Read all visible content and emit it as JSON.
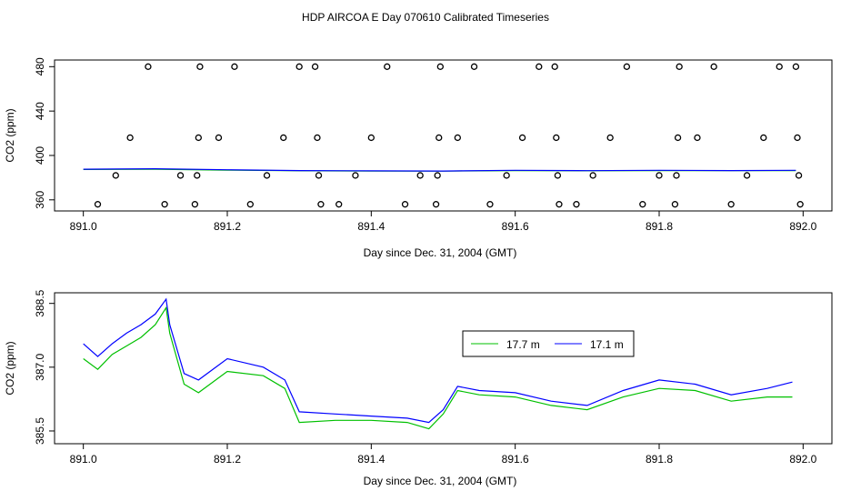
{
  "page": {
    "title": "HDP AIRCOA E  Day 070610  Calibrated Timeseries"
  },
  "chart_data": [
    {
      "type": "scatter",
      "xlabel": "Day since Dec. 31, 2004 (GMT)",
      "ylabel": "CO2 (ppm)",
      "xlim": [
        890.96,
        892.04
      ],
      "ylim": [
        350,
        486
      ],
      "xticks": [
        891.0,
        891.2,
        891.4,
        891.6,
        891.8,
        892.0
      ],
      "xtick_labels": [
        "891.0",
        "891.2",
        "891.4",
        "891.6",
        "891.8",
        "892.0"
      ],
      "yticks": [
        360,
        400,
        440,
        480
      ],
      "ytick_labels": [
        "360",
        "400",
        "440",
        "480"
      ],
      "legend": "none",
      "grid": false,
      "series": [
        {
          "color": "#00c000",
          "mode": "line",
          "x": [
            891.0,
            891.1,
            891.2,
            891.3,
            891.4,
            891.5,
            891.6,
            891.7,
            891.8,
            891.9,
            891.99
          ],
          "y": [
            387.4,
            387.6,
            386.8,
            386.2,
            386.0,
            385.9,
            386.4,
            386.2,
            386.4,
            386.3,
            386.4
          ]
        },
        {
          "color": "#0000ff",
          "mode": "line",
          "x": [
            891.0,
            891.1,
            891.2,
            891.3,
            891.4,
            891.5,
            891.6,
            891.7,
            891.8,
            891.9,
            891.99
          ],
          "y": [
            387.6,
            388.0,
            387.1,
            386.4,
            386.1,
            386.0,
            386.6,
            386.3,
            386.6,
            386.4,
            386.6
          ]
        },
        {
          "color": "#000000",
          "mode": "points",
          "points": [
            [
              891.02,
              356
            ],
            [
              891.045,
              382
            ],
            [
              891.065,
              416
            ],
            [
              891.09,
              480
            ],
            [
              891.113,
              356
            ],
            [
              891.135,
              382
            ],
            [
              891.155,
              356
            ],
            [
              891.158,
              382
            ],
            [
              891.16,
              416
            ],
            [
              891.162,
              480
            ],
            [
              891.188,
              416
            ],
            [
              891.21,
              480
            ],
            [
              891.232,
              356
            ],
            [
              891.255,
              382
            ],
            [
              891.278,
              416
            ],
            [
              891.3,
              480
            ],
            [
              891.322,
              480
            ],
            [
              891.325,
              416
            ],
            [
              891.327,
              382
            ],
            [
              891.33,
              356
            ],
            [
              891.355,
              356
            ],
            [
              891.378,
              382
            ],
            [
              891.4,
              416
            ],
            [
              891.422,
              480
            ],
            [
              891.447,
              356
            ],
            [
              891.468,
              382
            ],
            [
              891.49,
              356
            ],
            [
              891.492,
              382
            ],
            [
              891.494,
              416
            ],
            [
              891.496,
              480
            ],
            [
              891.52,
              416
            ],
            [
              891.543,
              480
            ],
            [
              891.565,
              356
            ],
            [
              891.588,
              382
            ],
            [
              891.61,
              416
            ],
            [
              891.633,
              480
            ],
            [
              891.655,
              480
            ],
            [
              891.657,
              416
            ],
            [
              891.659,
              382
            ],
            [
              891.661,
              356
            ],
            [
              891.685,
              356
            ],
            [
              891.708,
              382
            ],
            [
              891.732,
              416
            ],
            [
              891.755,
              480
            ],
            [
              891.777,
              356
            ],
            [
              891.8,
              382
            ],
            [
              891.822,
              356
            ],
            [
              891.824,
              382
            ],
            [
              891.826,
              416
            ],
            [
              891.828,
              480
            ],
            [
              891.853,
              416
            ],
            [
              891.876,
              480
            ],
            [
              891.9,
              356
            ],
            [
              891.922,
              382
            ],
            [
              891.945,
              416
            ],
            [
              891.967,
              480
            ],
            [
              891.99,
              480
            ],
            [
              891.992,
              416
            ],
            [
              891.994,
              382
            ],
            [
              891.996,
              356
            ]
          ]
        }
      ]
    },
    {
      "type": "line",
      "xlabel": "Day since Dec. 31, 2004 (GMT)",
      "ylabel": "CO2 (ppm)",
      "xlim": [
        890.96,
        892.04
      ],
      "ylim": [
        385.2,
        388.75
      ],
      "xticks": [
        891.0,
        891.2,
        891.4,
        891.6,
        891.8,
        892.0
      ],
      "xtick_labels": [
        "891.0",
        "891.2",
        "891.4",
        "891.6",
        "891.8",
        "892.0"
      ],
      "yticks": [
        385.5,
        387.0,
        388.5
      ],
      "ytick_labels": [
        "385.5",
        "387.0",
        "388.5"
      ],
      "legend": "top-right",
      "grid": false,
      "series": [
        {
          "name": "17.7 m",
          "color": "#00c000",
          "x": [
            891.0,
            891.02,
            891.04,
            891.06,
            891.08,
            891.1,
            891.115,
            891.12,
            891.14,
            891.16,
            891.2,
            891.25,
            891.28,
            891.3,
            891.35,
            891.4,
            891.45,
            891.48,
            891.5,
            891.52,
            891.55,
            891.6,
            891.65,
            891.7,
            891.75,
            891.8,
            891.85,
            891.9,
            891.95,
            891.985
          ],
          "y": [
            387.2,
            386.95,
            387.3,
            387.5,
            387.7,
            388.0,
            388.4,
            387.8,
            386.6,
            386.4,
            386.9,
            386.8,
            386.5,
            385.7,
            385.75,
            385.75,
            385.7,
            385.55,
            385.9,
            386.45,
            386.35,
            386.3,
            386.1,
            386.0,
            386.3,
            386.5,
            386.45,
            386.2,
            386.3,
            386.3
          ]
        },
        {
          "name": "17.1 m",
          "color": "#0000ff",
          "x": [
            891.0,
            891.02,
            891.04,
            891.06,
            891.08,
            891.1,
            891.115,
            891.12,
            891.14,
            891.16,
            891.2,
            891.25,
            891.28,
            891.3,
            891.35,
            891.4,
            891.45,
            891.48,
            891.5,
            891.52,
            891.55,
            891.6,
            891.65,
            891.7,
            891.75,
            891.8,
            891.85,
            891.9,
            891.95,
            891.985
          ],
          "y": [
            387.55,
            387.25,
            387.55,
            387.8,
            388.0,
            388.25,
            388.6,
            388.0,
            386.85,
            386.7,
            387.2,
            387.0,
            386.7,
            385.95,
            385.9,
            385.85,
            385.8,
            385.7,
            386.0,
            386.55,
            386.45,
            386.4,
            386.2,
            386.1,
            386.45,
            386.7,
            386.6,
            386.35,
            386.5,
            386.65
          ]
        }
      ]
    }
  ]
}
